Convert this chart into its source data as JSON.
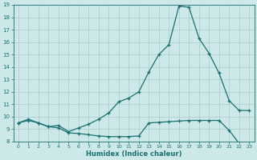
{
  "title": "",
  "xlabel": "Humidex (Indice chaleur)",
  "bg_color": "#cce8e8",
  "line_color": "#1a7070",
  "grid_color": "#aacccc",
  "xlim": [
    -0.5,
    23.5
  ],
  "ylim": [
    8,
    19
  ],
  "yticks": [
    8,
    9,
    10,
    11,
    12,
    13,
    14,
    15,
    16,
    17,
    18,
    19
  ],
  "xticks": [
    0,
    1,
    2,
    3,
    4,
    5,
    6,
    7,
    8,
    9,
    10,
    11,
    12,
    13,
    14,
    15,
    16,
    17,
    18,
    19,
    20,
    21,
    22,
    23
  ],
  "line1_x": [
    0,
    1,
    2,
    3,
    4,
    5,
    6,
    7,
    8,
    9,
    10,
    11,
    12,
    13,
    14,
    15,
    16,
    17,
    18,
    19,
    20,
    21,
    22,
    23
  ],
  "line1_y": [
    9.5,
    9.8,
    9.5,
    9.2,
    9.3,
    8.8,
    9.1,
    9.4,
    9.8,
    10.3,
    11.2,
    11.5,
    12.0,
    13.6,
    15.0,
    15.8,
    18.9,
    18.8,
    16.3,
    15.1,
    13.5,
    11.3,
    10.5,
    10.5
  ],
  "line2_x": [
    0,
    1,
    2,
    3,
    4,
    5,
    6,
    7,
    8,
    9,
    10,
    11,
    12,
    13,
    14,
    15,
    16,
    17,
    18,
    19,
    20,
    21,
    22,
    23
  ],
  "line2_y": [
    9.5,
    9.7,
    9.5,
    9.2,
    9.1,
    8.7,
    8.65,
    8.55,
    8.45,
    8.4,
    8.4,
    8.4,
    8.45,
    9.5,
    9.55,
    9.6,
    9.65,
    9.7,
    9.7,
    9.7,
    9.7,
    8.9,
    7.85,
    7.7
  ]
}
